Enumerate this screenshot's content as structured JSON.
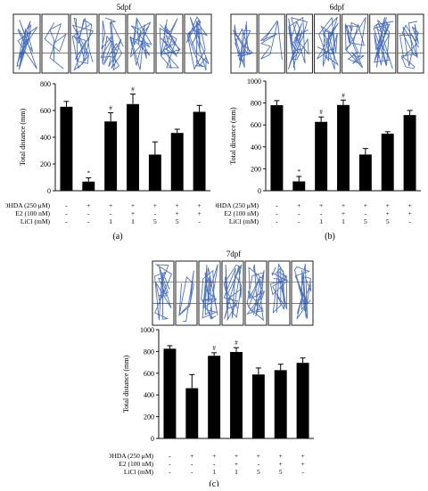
{
  "chart_data": [
    {
      "type": "bar",
      "panel_label": "(a)",
      "title": "5dpf",
      "ylabel": "Total distance (mm)",
      "ylim": [
        0,
        800
      ],
      "yticks": [
        "0",
        "200",
        "400",
        "600",
        "800"
      ],
      "values": [
        628,
        68,
        518,
        648,
        270,
        432,
        590
      ],
      "errors": [
        40,
        28,
        65,
        75,
        95,
        28,
        48
      ],
      "markers": [
        "",
        "*",
        "#",
        "#",
        "",
        "",
        ""
      ],
      "conditions": [
        {
          "label": "6-OHDA (250 μM)",
          "values": [
            "-",
            "+",
            "+",
            "+",
            "+",
            "+",
            "+"
          ]
        },
        {
          "label": "E2 (100 nM)",
          "values": [
            "-",
            "-",
            "-",
            "+",
            "-",
            "+",
            "+"
          ]
        },
        {
          "label": "LiCl (mM)",
          "values": [
            "-",
            "-",
            "1",
            "1",
            "5",
            "5",
            "-"
          ]
        }
      ]
    },
    {
      "type": "bar",
      "panel_label": "(b)",
      "title": "6dpf",
      "ylabel": "Total distance (mm)",
      "ylim": [
        0,
        1000
      ],
      "yticks": [
        "0",
        "200",
        "400",
        "600",
        "800",
        "1000"
      ],
      "values": [
        780,
        85,
        628,
        782,
        330,
        520,
        690
      ],
      "errors": [
        42,
        45,
        45,
        45,
        55,
        18,
        42
      ],
      "markers": [
        "",
        "*",
        "#",
        "#",
        "",
        "",
        ""
      ],
      "conditions": [
        {
          "label": "6-OHDA (250 μM)",
          "values": [
            "-",
            "+",
            "+",
            "+",
            "+",
            "+",
            "+"
          ]
        },
        {
          "label": "E2 (100 nM)",
          "values": [
            "-",
            "-",
            "-",
            "+",
            "-",
            "+",
            "+"
          ]
        },
        {
          "label": "LiCl (mM)",
          "values": [
            "-",
            "-",
            "1",
            "1",
            "5",
            "5",
            "-"
          ]
        }
      ]
    },
    {
      "type": "bar",
      "panel_label": "(c)",
      "title": "7dpf",
      "ylabel": "Total distance (mm)",
      "ylim": [
        0,
        1000
      ],
      "yticks": [
        "0",
        "200",
        "400",
        "600",
        "800",
        "1000"
      ],
      "values": [
        825,
        462,
        760,
        795,
        588,
        628,
        695
      ],
      "errors": [
        28,
        125,
        28,
        40,
        60,
        55,
        45
      ],
      "markers": [
        "",
        "",
        "#",
        "#",
        "",
        "",
        ""
      ],
      "conditions": [
        {
          "label": "6-OHDA (250 μM)",
          "values": [
            "-",
            "+",
            "+",
            "+",
            "+",
            "+",
            "+"
          ]
        },
        {
          "label": "E2 (100 nM)",
          "values": [
            "-",
            "-",
            "-",
            "+",
            "-",
            "+",
            "+"
          ]
        },
        {
          "label": "LiCl (mM)",
          "values": [
            "-",
            "-",
            "1",
            "1",
            "5",
            "5",
            "-"
          ]
        }
      ]
    }
  ]
}
